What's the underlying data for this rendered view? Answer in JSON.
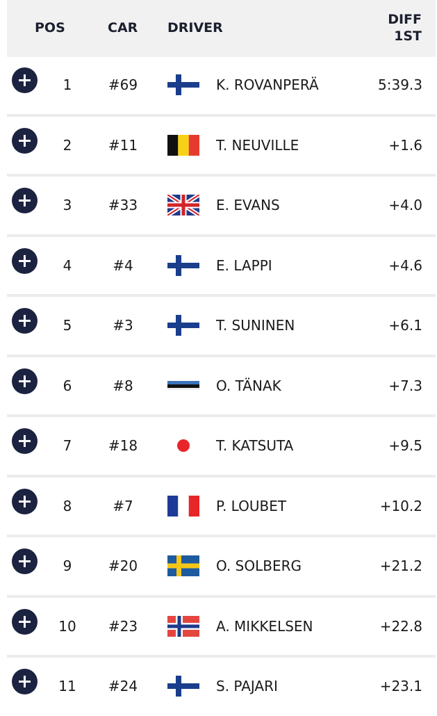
{
  "header": {
    "pos": "POS",
    "car": "CAR",
    "driver": "DRIVER",
    "diff": "DIFF 1ST"
  },
  "table": {
    "rows": [
      [
        "1",
        "#69",
        "K. ROVANPERÄ",
        "5:39.3"
      ],
      [
        "2",
        "#11",
        "T. NEUVILLE",
        "+1.6"
      ],
      [
        "3",
        "#33",
        "E. EVANS",
        "+4.0"
      ],
      [
        "4",
        "#4",
        "E. LAPPI",
        "+4.6"
      ],
      [
        "5",
        "#3",
        "T. SUNINEN",
        "+6.1"
      ],
      [
        "6",
        "#8",
        "O. TÄNAK",
        "+7.3"
      ],
      [
        "7",
        "#18",
        "T. KATSUTA",
        "+9.5"
      ],
      [
        "8",
        "#7",
        "P. LOUBET",
        "+10.2"
      ],
      [
        "9",
        "#20",
        "O. SOLBERG",
        "+21.2"
      ],
      [
        "10",
        "#23",
        "A. MIKKELSEN",
        "+22.8"
      ],
      [
        "11",
        "#24",
        "S. PAJARI",
        "+23.1"
      ]
    ]
  }
}
